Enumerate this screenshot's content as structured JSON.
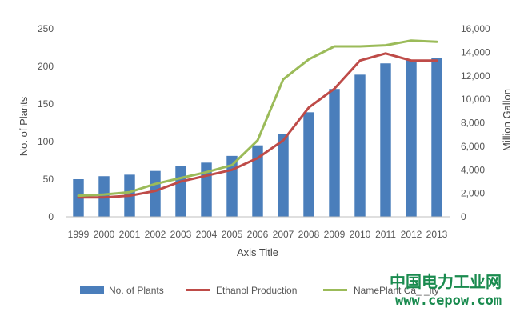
{
  "chart_data": {
    "type": "bar",
    "title": "",
    "categories": [
      "1999",
      "2000",
      "2001",
      "2002",
      "2003",
      "2004",
      "2005",
      "2006",
      "2007",
      "2008",
      "2009",
      "2010",
      "2011",
      "2012",
      "2013"
    ],
    "xlabel": "Axis Title",
    "ylabel": "No. of Plants",
    "y2label": "Million Gallon",
    "ylim": [
      0,
      250
    ],
    "y2lim": [
      0,
      16000
    ],
    "yticks": [
      "0",
      "50",
      "100",
      "150",
      "200",
      "250"
    ],
    "y2ticks": [
      "0",
      "2,000",
      "4,000",
      "6,000",
      "8,000",
      "10,000",
      "12,000",
      "14,000",
      "16,000"
    ],
    "grid": false,
    "legend_position": "bottom",
    "series": [
      {
        "name": "No. of Plants",
        "type": "bar",
        "axis": "left",
        "color": "#4a7ebb",
        "values": [
          50,
          54,
          56,
          61,
          68,
          72,
          81,
          95,
          110,
          139,
          170,
          189,
          204,
          209,
          211
        ]
      },
      {
        "name": "Ethanol Production",
        "type": "line",
        "axis": "right",
        "color": "#be4b48",
        "values": [
          1650,
          1650,
          1800,
          2200,
          3000,
          3500,
          4000,
          5000,
          6500,
          9300,
          10900,
          13300,
          13900,
          13300,
          13300
        ]
      },
      {
        "name": "NamePlant Ca_ _ity",
        "type": "line",
        "axis": "right",
        "color": "#9bbb59",
        "values": [
          1800,
          1900,
          2100,
          2800,
          3300,
          3800,
          4400,
          6500,
          11700,
          13400,
          14500,
          14500,
          14600,
          15000,
          14900
        ]
      }
    ]
  },
  "watermark": {
    "chinese": "中国电力工业网",
    "url": "www.cepow.com",
    "color": "#1a8b4f"
  }
}
